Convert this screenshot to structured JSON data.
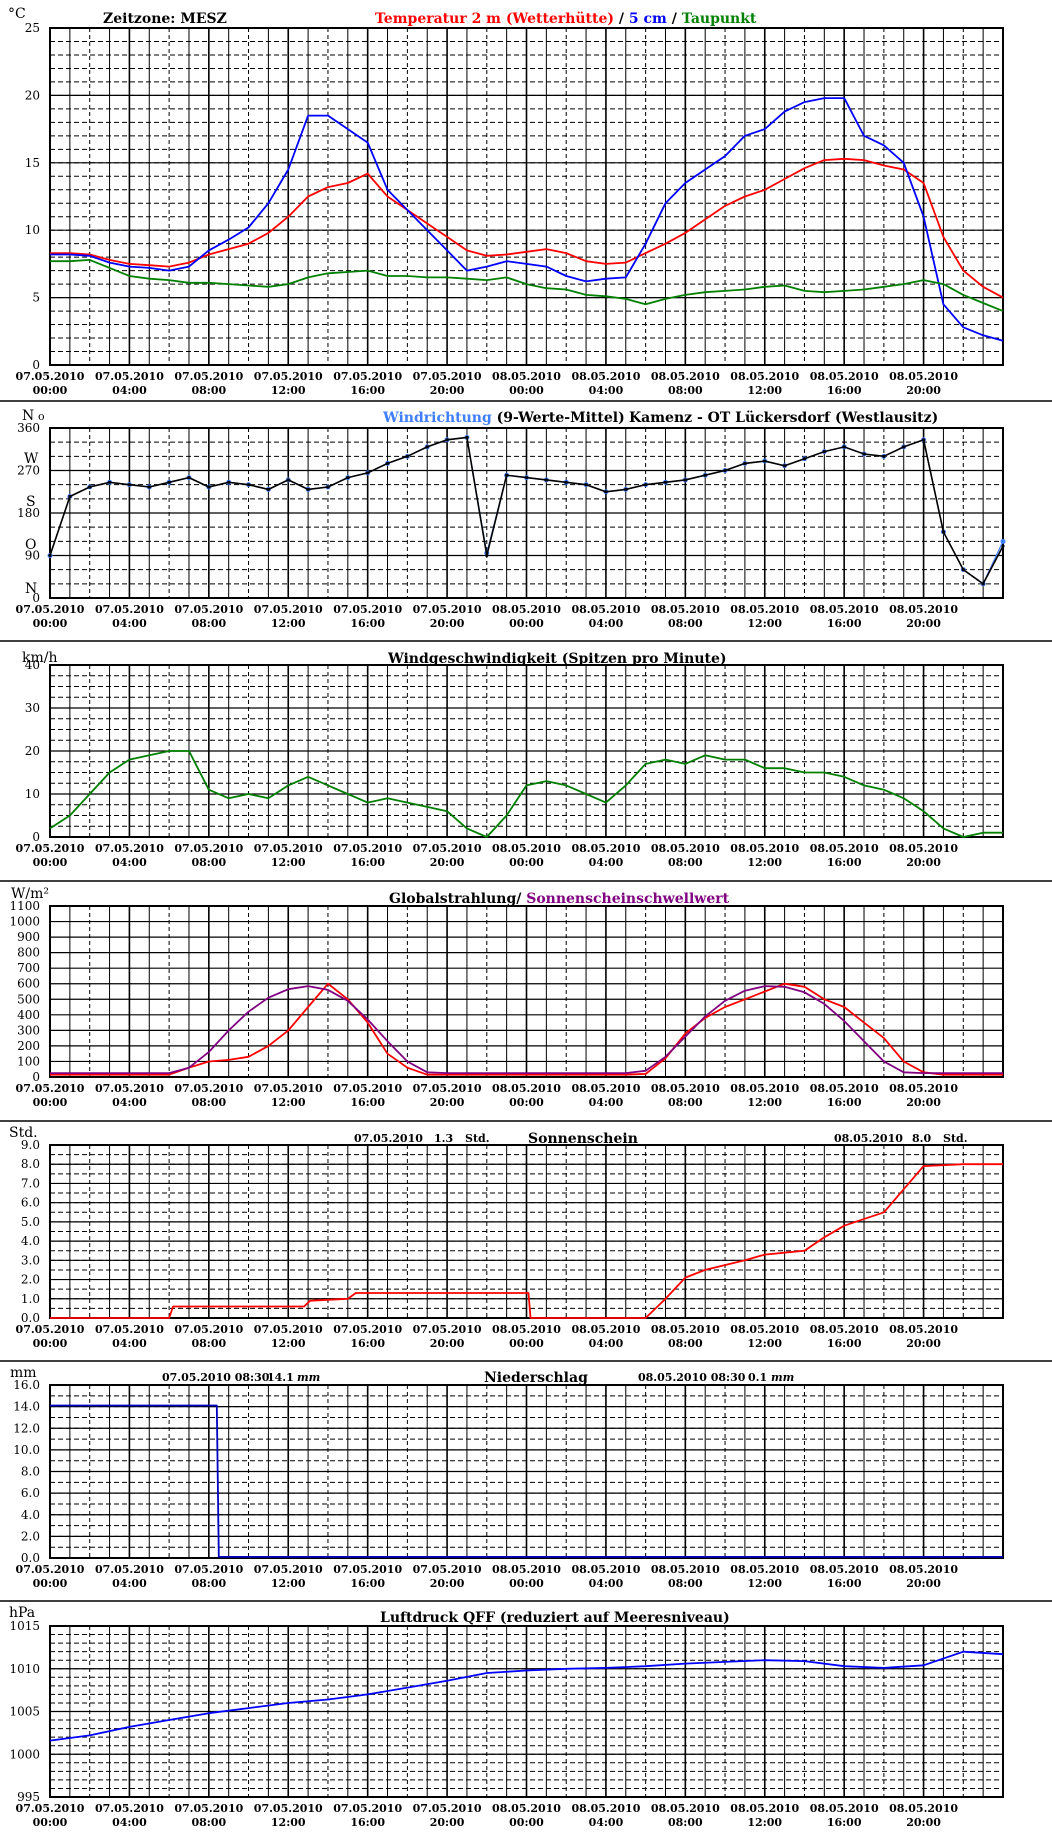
{
  "station": "Kamenz - OT Lückersdorf (Westlausitz)",
  "timezone_label": "Zeitzone: MESZ",
  "x_tick_labels": [
    {
      "date": "07.05.2010",
      "time": "00:00"
    },
    {
      "date": "07.05.2010",
      "time": "04:00"
    },
    {
      "date": "07.05.2010",
      "time": "08:00"
    },
    {
      "date": "07.05.2010",
      "time": "12:00"
    },
    {
      "date": "07.05.2010",
      "time": "16:00"
    },
    {
      "date": "07.05.2010",
      "time": "20:00"
    },
    {
      "date": "08.05.2010",
      "time": "00:00"
    },
    {
      "date": "08.05.2010",
      "time": "04:00"
    },
    {
      "date": "08.05.2010",
      "time": "08:00"
    },
    {
      "date": "08.05.2010",
      "time": "12:00"
    },
    {
      "date": "08.05.2010",
      "time": "16:00"
    },
    {
      "date": "08.05.2010",
      "time": "20:00"
    }
  ],
  "colors": {
    "temperature": "#ff0000",
    "soil_5cm": "#0000ff",
    "dewpoint": "#008000",
    "wind_dir": "#3f7fff",
    "wind_dir_mean": "#000000",
    "wind_speed": "#008000",
    "global_rad": "#ff0000",
    "sun_threshold": "#800080",
    "sunshine": "#ff0000",
    "precip": "#0000c0",
    "pressure": "#0000ff",
    "grid": "#000000"
  },
  "panels": {
    "temp": {
      "unit": "°C",
      "title_parts": [
        "Temperatur 2 m (Wetterhütte)",
        " / ",
        "5 cm",
        " / ",
        "Taupunkt"
      ]
    },
    "wdir": {
      "unit": "N",
      "unit_suffix": "o",
      "title_left": "Windrichtung",
      "title_mid": " (9-Werte-Mittel)",
      "compass": [
        "N",
        "W",
        "S",
        "O",
        "N"
      ]
    },
    "wspd": {
      "unit": "km/h",
      "title": "Windgeschwindigkeit (Spitzen pro Minute)"
    },
    "rad": {
      "unit": "W/m²",
      "title_left": "Globalstrahlung/ ",
      "title_right": "Sonnenscheinschwellwert"
    },
    "sun": {
      "unit": "Std.",
      "title": "Sonnenschein",
      "day1_date": "07.05.2010",
      "day1_value": "1.3",
      "day1_unit": "Std.",
      "day2_date": "08.05.2010",
      "day2_value": "8.0",
      "day2_unit": "Std."
    },
    "precip": {
      "unit": "mm",
      "title": "Niederschlag",
      "day1_date": "07.05.2010 08:30",
      "day1_value": "14.1",
      "day1_unit": "mm",
      "day2_date": "08.05.2010 08:30",
      "day2_value": "0.1",
      "day2_unit": "mm"
    },
    "press": {
      "unit": "hPa",
      "title": "Luftdruck QFF (reduziert auf Meeresniveau)"
    }
  },
  "chart_data": [
    {
      "id": "temp",
      "type": "line",
      "ylim": [
        0,
        25
      ],
      "yticks": [
        "0",
        "5",
        "10",
        "15",
        "20",
        "25"
      ],
      "x": [
        0,
        1,
        2,
        3,
        4,
        5,
        6,
        7,
        8,
        9,
        10,
        11,
        12,
        13,
        14,
        15,
        16,
        17,
        18,
        19,
        20,
        21,
        22,
        23,
        24,
        25,
        26,
        27,
        28,
        29,
        30,
        31,
        32,
        33,
        34,
        35,
        36,
        37,
        38,
        39,
        40,
        41,
        42,
        43,
        44,
        45,
        46,
        47,
        48
      ],
      "series": [
        {
          "name": "Temperatur 2 m (Wetterhütte)",
          "color": "#ff0000",
          "values": [
            8.3,
            8.3,
            8.2,
            7.8,
            7.5,
            7.4,
            7.3,
            7.6,
            8.2,
            8.6,
            9.0,
            9.8,
            11.0,
            12.5,
            13.2,
            13.5,
            14.2,
            12.5,
            11.5,
            10.5,
            9.5,
            8.5,
            8.1,
            8.2,
            8.4,
            8.6,
            8.3,
            7.7,
            7.5,
            7.6,
            8.3,
            9.0,
            9.8,
            10.8,
            11.8,
            12.5,
            13.0,
            13.8,
            14.6,
            15.2,
            15.3,
            15.2,
            14.8,
            14.5,
            13.5,
            9.5,
            7.0,
            5.8,
            5.0
          ]
        },
        {
          "name": "5 cm",
          "color": "#0000ff",
          "values": [
            8.2,
            8.2,
            8.1,
            7.6,
            7.3,
            7.2,
            7.0,
            7.3,
            8.5,
            9.3,
            10.2,
            12.0,
            14.5,
            18.5,
            18.5,
            17.5,
            16.5,
            13.0,
            11.5,
            10.0,
            8.5,
            7.0,
            7.3,
            7.7,
            7.5,
            7.3,
            6.6,
            6.2,
            6.4,
            6.5,
            9.0,
            12.0,
            13.5,
            14.5,
            15.5,
            17.0,
            17.5,
            18.8,
            19.5,
            19.8,
            19.8,
            17.0,
            16.3,
            15.0,
            11.0,
            4.5,
            2.8,
            2.2,
            1.8
          ]
        },
        {
          "name": "Taupunkt",
          "color": "#008000",
          "values": [
            7.7,
            7.7,
            7.8,
            7.2,
            6.6,
            6.4,
            6.3,
            6.1,
            6.1,
            6.0,
            5.9,
            5.8,
            6.0,
            6.5,
            6.8,
            6.9,
            7.0,
            6.6,
            6.6,
            6.5,
            6.5,
            6.4,
            6.3,
            6.5,
            6.0,
            5.7,
            5.6,
            5.2,
            5.1,
            4.9,
            4.5,
            4.9,
            5.2,
            5.4,
            5.5,
            5.6,
            5.8,
            5.9,
            5.5,
            5.4,
            5.5,
            5.6,
            5.8,
            6.0,
            6.3,
            6.0,
            5.2,
            4.6,
            4.0
          ]
        }
      ]
    },
    {
      "id": "wdir",
      "type": "scatter",
      "ylim": [
        0,
        360
      ],
      "yticks": [
        "0",
        "90",
        "180",
        "270",
        "360"
      ],
      "x": [
        0,
        1,
        2,
        3,
        4,
        5,
        6,
        7,
        8,
        9,
        10,
        11,
        12,
        13,
        14,
        15,
        16,
        17,
        18,
        19,
        20,
        21,
        22,
        23,
        24,
        25,
        26,
        27,
        28,
        29,
        30,
        31,
        32,
        33,
        34,
        35,
        36,
        37,
        38,
        39,
        40,
        41,
        42,
        43,
        44,
        45,
        46,
        47,
        48
      ],
      "series": [
        {
          "name": "Windrichtung",
          "color": "#3f7fff",
          "values": [
            90,
            215,
            235,
            245,
            240,
            235,
            245,
            255,
            235,
            245,
            240,
            230,
            250,
            230,
            235,
            255,
            265,
            285,
            300,
            320,
            335,
            340,
            95,
            260,
            255,
            250,
            245,
            240,
            225,
            230,
            240,
            245,
            250,
            260,
            270,
            285,
            290,
            280,
            295,
            310,
            320,
            305,
            300,
            320,
            335,
            140,
            60,
            30,
            120
          ]
        },
        {
          "name": "9-Werte-Mittel",
          "color": "#000000",
          "values": [
            90,
            215,
            235,
            245,
            240,
            235,
            245,
            255,
            235,
            245,
            240,
            230,
            250,
            230,
            235,
            255,
            265,
            285,
            300,
            320,
            335,
            340,
            90,
            260,
            255,
            250,
            245,
            240,
            225,
            230,
            240,
            245,
            250,
            260,
            270,
            285,
            290,
            280,
            295,
            310,
            320,
            305,
            300,
            320,
            335,
            140,
            60,
            30,
            110
          ]
        }
      ]
    },
    {
      "id": "wspd",
      "type": "line",
      "ylim": [
        0,
        40
      ],
      "yticks": [
        "0",
        "10",
        "20",
        "30",
        "40"
      ],
      "x": [
        0,
        1,
        2,
        3,
        4,
        5,
        6,
        7,
        8,
        9,
        10,
        11,
        12,
        13,
        14,
        15,
        16,
        17,
        18,
        19,
        20,
        21,
        22,
        23,
        24,
        25,
        26,
        27,
        28,
        29,
        30,
        31,
        32,
        33,
        34,
        35,
        36,
        37,
        38,
        39,
        40,
        41,
        42,
        43,
        44,
        45,
        46,
        47,
        48
      ],
      "series": [
        {
          "name": "Windgeschwindigkeit",
          "color": "#008000",
          "values": [
            2,
            5,
            10,
            15,
            18,
            19,
            20,
            20,
            11,
            9,
            10,
            9,
            12,
            14,
            12,
            10,
            8,
            9,
            8,
            7,
            6,
            2,
            0,
            5,
            12,
            13,
            12,
            10,
            8,
            12,
            17,
            18,
            17,
            19,
            18,
            18,
            16,
            16,
            15,
            15,
            14,
            12,
            11,
            9,
            6,
            2,
            0,
            1,
            1
          ]
        }
      ]
    },
    {
      "id": "rad",
      "type": "line",
      "ylim": [
        0,
        1100
      ],
      "yticks": [
        "0",
        "100",
        "200",
        "300",
        "400",
        "500",
        "600",
        "700",
        "800",
        "900",
        "1000",
        "1100"
      ],
      "x": [
        0,
        1,
        2,
        3,
        4,
        5,
        6,
        7,
        8,
        9,
        10,
        11,
        12,
        13,
        14,
        15,
        16,
        17,
        18,
        19,
        20,
        21,
        22,
        23,
        24,
        25,
        26,
        27,
        28,
        29,
        30,
        31,
        32,
        33,
        34,
        35,
        36,
        37,
        38,
        39,
        40,
        41,
        42,
        43,
        44,
        45,
        46,
        47,
        48
      ],
      "series": [
        {
          "name": "Globalstrahlung",
          "color": "#ff0000",
          "values": [
            15,
            15,
            15,
            15,
            15,
            15,
            15,
            60,
            100,
            110,
            130,
            200,
            300,
            450,
            600,
            500,
            350,
            150,
            60,
            15,
            15,
            15,
            15,
            15,
            15,
            15,
            15,
            15,
            15,
            15,
            20,
            120,
            280,
            380,
            450,
            500,
            550,
            600,
            580,
            500,
            450,
            350,
            250,
            100,
            30,
            15,
            15,
            15,
            15
          ]
        },
        {
          "name": "Sonnenscheinschwellwert",
          "color": "#800080",
          "values": [
            25,
            25,
            25,
            25,
            25,
            25,
            25,
            60,
            160,
            300,
            420,
            510,
            565,
            585,
            560,
            490,
            370,
            230,
            100,
            30,
            25,
            25,
            25,
            25,
            25,
            25,
            25,
            25,
            25,
            25,
            40,
            130,
            260,
            390,
            490,
            555,
            585,
            580,
            545,
            470,
            360,
            230,
            100,
            30,
            25,
            25,
            25,
            25,
            25
          ]
        }
      ]
    },
    {
      "id": "sun",
      "type": "line",
      "ylim": [
        0,
        9
      ],
      "yticks": [
        "0.0",
        "1.0",
        "2.0",
        "3.0",
        "4.0",
        "5.0",
        "6.0",
        "7.0",
        "8.0",
        "9.0"
      ],
      "x": [
        0,
        6,
        6.2,
        12.8,
        13.1,
        15,
        15.4,
        24.1,
        24.2,
        30,
        30.5,
        31,
        32,
        33,
        35,
        36,
        38,
        39,
        40,
        42,
        44,
        46,
        48
      ],
      "series": [
        {
          "name": "Sonnenschein",
          "color": "#ff0000",
          "values": [
            0,
            0,
            0.6,
            0.6,
            0.9,
            1.0,
            1.3,
            1.3,
            0,
            0,
            0.5,
            1.0,
            2.1,
            2.5,
            3.0,
            3.3,
            3.5,
            4.2,
            4.8,
            5.5,
            7.9,
            8.0,
            8.0
          ]
        }
      ]
    },
    {
      "id": "precip",
      "type": "line",
      "ylim": [
        0,
        16
      ],
      "yticks": [
        "0.0",
        "2.0",
        "4.0",
        "6.0",
        "8.0",
        "10.0",
        "12.0",
        "14.0",
        "16.0"
      ],
      "x": [
        0,
        8.4,
        8.5,
        24,
        32.5,
        48
      ],
      "series": [
        {
          "name": "Niederschlag",
          "color": "#0000c0",
          "values": [
            14.1,
            14.1,
            0.1,
            0.1,
            0.1,
            0.1
          ]
        }
      ]
    },
    {
      "id": "press",
      "type": "line",
      "ylim": [
        995,
        1015
      ],
      "yticks": [
        "995",
        "1000",
        "1005",
        "1010",
        "1015"
      ],
      "x": [
        0,
        2,
        4,
        6,
        8,
        10,
        12,
        14,
        16,
        18,
        20,
        22,
        24,
        26,
        28,
        30,
        32,
        34,
        36,
        38,
        40,
        42,
        44,
        46,
        48
      ],
      "series": [
        {
          "name": "Luftdruck QFF",
          "color": "#0000ff",
          "values": [
            1001.6,
            1002.2,
            1003.2,
            1004.0,
            1004.8,
            1005.4,
            1006.0,
            1006.4,
            1007.0,
            1007.8,
            1008.6,
            1009.5,
            1009.8,
            1010.0,
            1010.1,
            1010.3,
            1010.6,
            1010.8,
            1011.0,
            1010.9,
            1010.3,
            1010.1,
            1010.4,
            1012.0,
            1011.7
          ]
        }
      ]
    }
  ]
}
